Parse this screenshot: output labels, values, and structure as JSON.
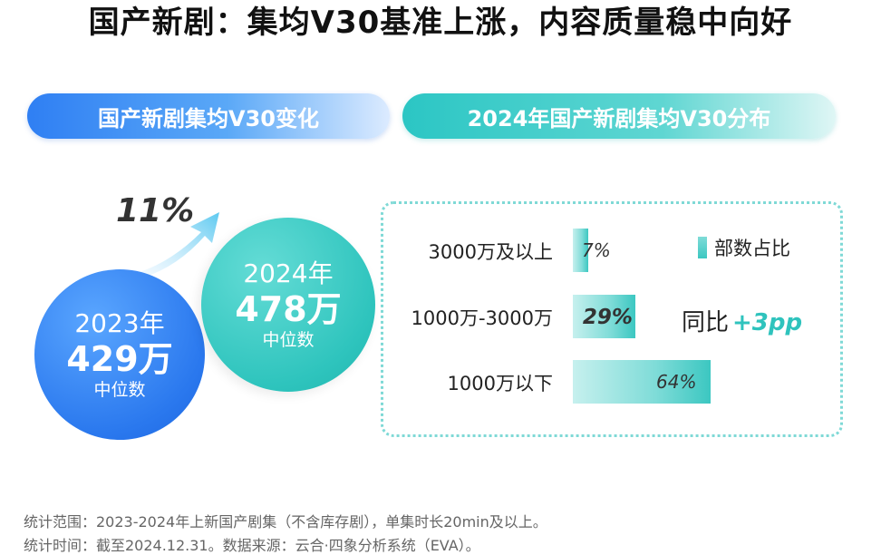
{
  "title": "国产新剧：集均V30基准上涨，内容质量稳中向好",
  "left_panel": {
    "header": "国产新剧集均V30变化",
    "growth": "11%",
    "year_2023": {
      "year": "2023年",
      "value": "429万",
      "sub": "中位数"
    },
    "year_2024": {
      "year": "2024年",
      "value": "478万",
      "sub": "中位数"
    }
  },
  "right_panel": {
    "header": "2024年国产新剧集均V30分布",
    "legend": "部数占比",
    "yoy_label": "同比",
    "yoy_value": "+3pp"
  },
  "chart_data": {
    "type": "bar",
    "orientation": "horizontal",
    "title": "2024年国产新剧集均V30分布",
    "categories": [
      "3000万及以上",
      "1000万-3000万",
      "1000万以下"
    ],
    "series": [
      {
        "name": "部数占比",
        "values": [
          7,
          29,
          64
        ],
        "labels": [
          "7%",
          "29%",
          "64%"
        ]
      }
    ],
    "xlim": [
      0,
      64
    ],
    "legend_position": "top-right",
    "grid": false,
    "annotations": [
      {
        "category": "1000万-3000万",
        "text": "同比 +3pp"
      }
    ],
    "colors": {
      "bar": "#3cc7c1"
    }
  },
  "footnotes": [
    "统计范围：2023-2024年上新国产剧集（不含库存剧），单集时长20min及以上。",
    "统计时间：截至2024.12.31。数据来源：云合·四象分析系统（EVA）。"
  ]
}
